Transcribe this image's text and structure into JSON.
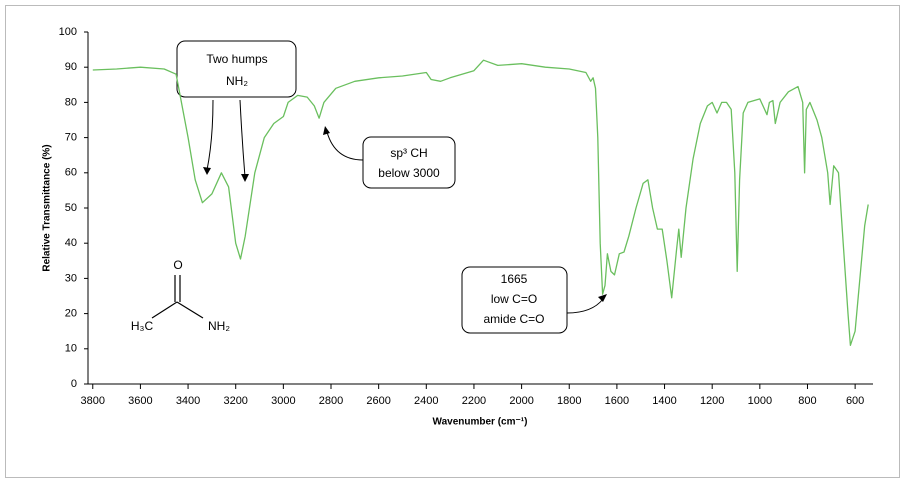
{
  "chart_data": {
    "type": "line",
    "ylabel": "Relative Transmittance (%)",
    "xlabel": "Wavenumber (cm⁻¹)",
    "xlim": [
      3820,
      525
    ],
    "ylim": [
      0,
      100
    ],
    "xticks": [
      3800,
      3600,
      3400,
      3200,
      3000,
      2800,
      2600,
      2400,
      2200,
      2000,
      1800,
      1600,
      1400,
      1200,
      1000,
      800,
      600
    ],
    "yticks": [
      0,
      10,
      20,
      30,
      40,
      50,
      60,
      70,
      80,
      90,
      100
    ],
    "x": [
      3800,
      3700,
      3600,
      3500,
      3450,
      3400,
      3370,
      3340,
      3300,
      3260,
      3230,
      3200,
      3180,
      3160,
      3120,
      3080,
      3040,
      3000,
      2980,
      2940,
      2900,
      2870,
      2850,
      2830,
      2780,
      2700,
      2600,
      2500,
      2400,
      2380,
      2340,
      2300,
      2200,
      2160,
      2100,
      2000,
      1900,
      1800,
      1730,
      1710,
      1700,
      1690,
      1680,
      1670,
      1660,
      1650,
      1640,
      1625,
      1610,
      1590,
      1570,
      1550,
      1520,
      1490,
      1470,
      1450,
      1430,
      1410,
      1390,
      1370,
      1350,
      1340,
      1330,
      1310,
      1280,
      1250,
      1220,
      1200,
      1180,
      1160,
      1140,
      1120,
      1105,
      1095,
      1085,
      1070,
      1050,
      1000,
      970,
      960,
      945,
      935,
      915,
      880,
      840,
      820,
      812,
      805,
      790,
      760,
      740,
      715,
      705,
      690,
      670,
      650,
      630,
      620,
      600,
      580,
      560,
      545
    ],
    "series": [
      {
        "color": "#6abf5e",
        "values": [
          89.2,
          89.5,
          90,
          89.5,
          88,
          70,
          58,
          51.5,
          54,
          60,
          56,
          40,
          35.5,
          42,
          60,
          70,
          74,
          76,
          80,
          82,
          81.5,
          79,
          75.5,
          80,
          84,
          86,
          87,
          87.5,
          88.5,
          86.5,
          86,
          87,
          89,
          92,
          90.5,
          91,
          90,
          89.5,
          88.5,
          86,
          87,
          84,
          70,
          40,
          25.5,
          28,
          37,
          32,
          31,
          37,
          37.5,
          42,
          50,
          57,
          58,
          50,
          44,
          44,
          35,
          24.5,
          38,
          44,
          36,
          50,
          64,
          74,
          79,
          80,
          77,
          80,
          80,
          78,
          60,
          32,
          58,
          77,
          80,
          81,
          76.5,
          80,
          80.5,
          74,
          80,
          83,
          84.5,
          80,
          60,
          78,
          80,
          75,
          70,
          60,
          51,
          62,
          60,
          40,
          20,
          11,
          15,
          30,
          45,
          51
        ]
      }
    ],
    "annotations": [
      [
        "Two humps",
        "NH₂"
      ],
      [
        "sp³ CH",
        "below 3000"
      ],
      [
        "1665",
        "low C=O",
        "amide C=O"
      ]
    ],
    "structure_labels": [
      "O",
      "H₃C",
      "NH₂"
    ]
  }
}
